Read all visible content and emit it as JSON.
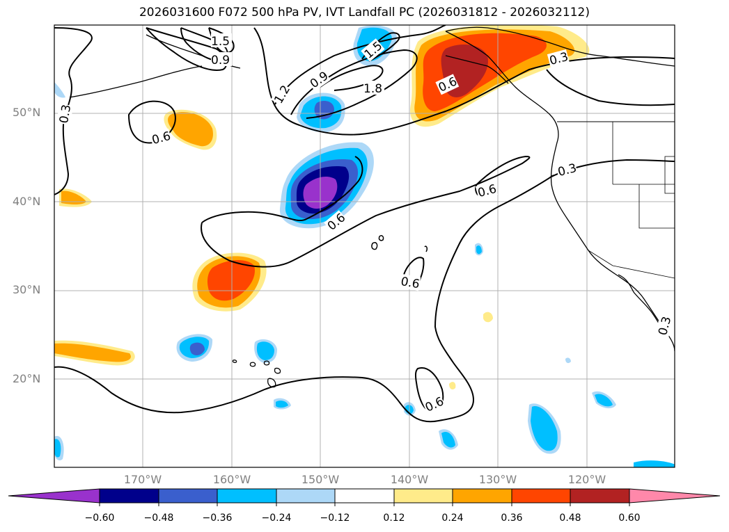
{
  "title": "2026031600 F072 500 hPa PV, IVT Landfall PC (2026031812 - 2026032112)",
  "map": {
    "lat_labels": [
      "50°N",
      "40°N",
      "30°N",
      "20°N"
    ],
    "lon_labels": [
      "170°W",
      "160°W",
      "150°W",
      "140°W",
      "130°W",
      "120°W"
    ],
    "contour_labels": [
      "1.5",
      "0.9",
      "1.2",
      "0.9",
      "1.5",
      "1.8",
      "0.6",
      "0.3",
      "0.3",
      "0.6",
      "0.6",
      "0.3",
      "0.6",
      "0.6",
      "0.6",
      "0.3"
    ],
    "contour_levels": [
      0.3,
      0.6,
      0.9,
      1.2,
      1.5,
      1.8
    ],
    "fill_colors": {
      "neg_0_60": "#9932cc",
      "neg_0_48": "#00008b",
      "neg_0_36": "#3a5fcd",
      "neg_0_24": "#00bfff",
      "neg_0_12": "#add8f7",
      "neutral": "#ffffff",
      "pos_0_12": "#ffeb8a",
      "pos_0_24": "#ffa500",
      "pos_0_36": "#ff4500",
      "pos_0_48": "#b22222",
      "pos_0_60": "#ff88aa"
    }
  },
  "colorbar": {
    "ticks": [
      "−0.60",
      "−0.48",
      "−0.36",
      "−0.24",
      "−0.12",
      "0.12",
      "0.24",
      "0.36",
      "0.48",
      "0.60"
    ],
    "colors": [
      "#9932cc",
      "#00008b",
      "#3a5fcd",
      "#00bfff",
      "#add8f7",
      "#ffffff",
      "#ffeb8a",
      "#ffa500",
      "#ff4500",
      "#b22222",
      "#ff88aa"
    ]
  }
}
